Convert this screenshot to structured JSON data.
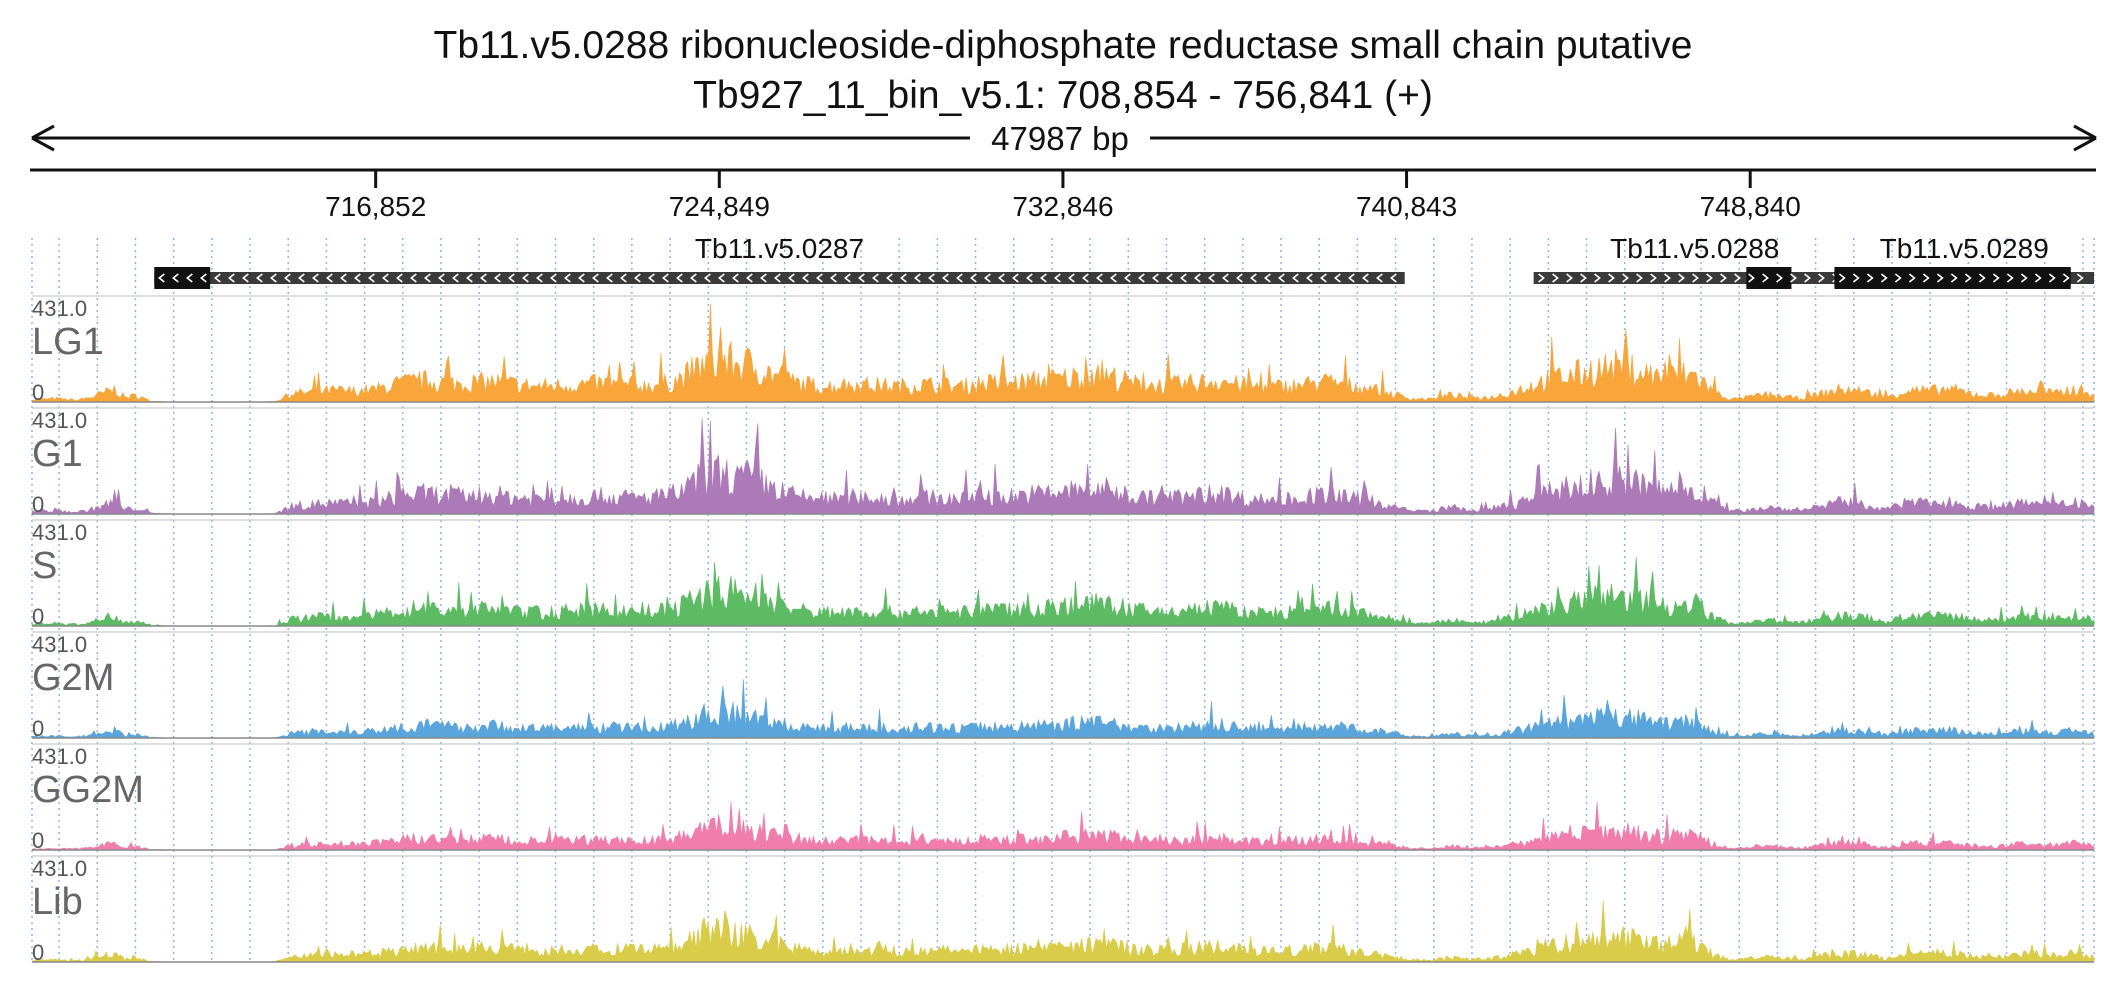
{
  "chart_data": {
    "type": "area",
    "title": "Tb11.v5.0288  ribonucleoside-diphosphate reductase small chain  putative",
    "subtitle": "Tb927_11_bin_v5.1: 708,854 - 756,841 (+)",
    "span_label": "47987 bp",
    "x_range": [
      708854,
      756841
    ],
    "ticks": [
      {
        "pos": 716852,
        "label": "716,852"
      },
      {
        "pos": 724849,
        "label": "724,849"
      },
      {
        "pos": 732846,
        "label": "732,846"
      },
      {
        "pos": 740843,
        "label": "740,843"
      },
      {
        "pos": 748840,
        "label": "748,840"
      }
    ],
    "genes": [
      {
        "name": "Tb11.v5.0287",
        "start": 711700,
        "end": 740800,
        "strand": "-",
        "cds_start": 711700,
        "cds_end": 713000
      },
      {
        "name": "Tb11.v5.0288",
        "start": 743800,
        "end": 751300,
        "strand": "+",
        "cds_start": 748750,
        "cds_end": 749800
      },
      {
        "name": "Tb11.v5.0289",
        "start": 750800,
        "end": 756841,
        "strand": "+",
        "cds_start": 750800,
        "cds_end": 756300
      }
    ],
    "y_range": [
      0,
      431.0
    ],
    "ymax_label": "431.0",
    "ymin_label": "0",
    "series": [
      {
        "name": "LG1",
        "color": "#f8a53a"
      },
      {
        "name": "G1",
        "color": "#ad7ab8"
      },
      {
        "name": "S",
        "color": "#5dbb63"
      },
      {
        "name": "G2M",
        "color": "#5aa5dc"
      },
      {
        "name": "GG2M",
        "color": "#f07dac"
      },
      {
        "name": "Lib",
        "color": "#d9cc48"
      }
    ],
    "profile": [
      [
        708854,
        12
      ],
      [
        709400,
        18
      ],
      [
        709900,
        10
      ],
      [
        710300,
        30
      ],
      [
        710600,
        55
      ],
      [
        710800,
        70
      ],
      [
        711000,
        25
      ],
      [
        711300,
        35
      ],
      [
        711600,
        5
      ],
      [
        712200,
        0
      ],
      [
        713400,
        0
      ],
      [
        714000,
        0
      ],
      [
        714500,
        2
      ],
      [
        714900,
        45
      ],
      [
        715400,
        55
      ],
      [
        715900,
        62
      ],
      [
        716400,
        58
      ],
      [
        716900,
        70
      ],
      [
        717300,
        95
      ],
      [
        717700,
        110
      ],
      [
        718100,
        115
      ],
      [
        718600,
        100
      ],
      [
        719100,
        105
      ],
      [
        719600,
        110
      ],
      [
        720100,
        95
      ],
      [
        720600,
        85
      ],
      [
        721100,
        90
      ],
      [
        721600,
        95
      ],
      [
        722100,
        100
      ],
      [
        722600,
        95
      ],
      [
        723100,
        90
      ],
      [
        723600,
        100
      ],
      [
        724000,
        130
      ],
      [
        724400,
        190
      ],
      [
        724800,
        230
      ],
      [
        725200,
        210
      ],
      [
        725600,
        200
      ],
      [
        726000,
        160
      ],
      [
        726500,
        110
      ],
      [
        727000,
        90
      ],
      [
        727500,
        85
      ],
      [
        728000,
        95
      ],
      [
        728500,
        90
      ],
      [
        729000,
        85
      ],
      [
        729500,
        95
      ],
      [
        730000,
        90
      ],
      [
        730500,
        85
      ],
      [
        731000,
        105
      ],
      [
        731500,
        100
      ],
      [
        732000,
        110
      ],
      [
        732500,
        120
      ],
      [
        733000,
        130
      ],
      [
        733500,
        140
      ],
      [
        734000,
        135
      ],
      [
        734500,
        100
      ],
      [
        735000,
        90
      ],
      [
        735500,
        95
      ],
      [
        736000,
        105
      ],
      [
        736500,
        120
      ],
      [
        737000,
        90
      ],
      [
        737500,
        80
      ],
      [
        738000,
        85
      ],
      [
        738500,
        95
      ],
      [
        739000,
        110
      ],
      [
        739500,
        90
      ],
      [
        740000,
        75
      ],
      [
        740500,
        45
      ],
      [
        740900,
        20
      ],
      [
        741400,
        15
      ],
      [
        741900,
        40
      ],
      [
        742300,
        20
      ],
      [
        742800,
        25
      ],
      [
        743300,
        55
      ],
      [
        743800,
        95
      ],
      [
        744300,
        130
      ],
      [
        744800,
        150
      ],
      [
        745300,
        180
      ],
      [
        745800,
        190
      ],
      [
        746300,
        165
      ],
      [
        746800,
        130
      ],
      [
        747200,
        150
      ],
      [
        747600,
        140
      ],
      [
        748000,
        55
      ],
      [
        748400,
        15
      ],
      [
        748800,
        25
      ],
      [
        749200,
        40
      ],
      [
        749600,
        30
      ],
      [
        750000,
        20
      ],
      [
        750500,
        45
      ],
      [
        751000,
        70
      ],
      [
        751500,
        55
      ],
      [
        752000,
        25
      ],
      [
        752500,
        65
      ],
      [
        753000,
        60
      ],
      [
        753500,
        70
      ],
      [
        754000,
        45
      ],
      [
        754500,
        35
      ],
      [
        755000,
        55
      ],
      [
        755500,
        60
      ],
      [
        756000,
        45
      ],
      [
        756400,
        75
      ],
      [
        756841,
        40
      ]
    ],
    "track_scale": {
      "LG1": 1.0,
      "G1": 0.95,
      "S": 0.85,
      "G2M": 0.6,
      "GG2M": 0.55,
      "Lib": 0.7
    }
  }
}
